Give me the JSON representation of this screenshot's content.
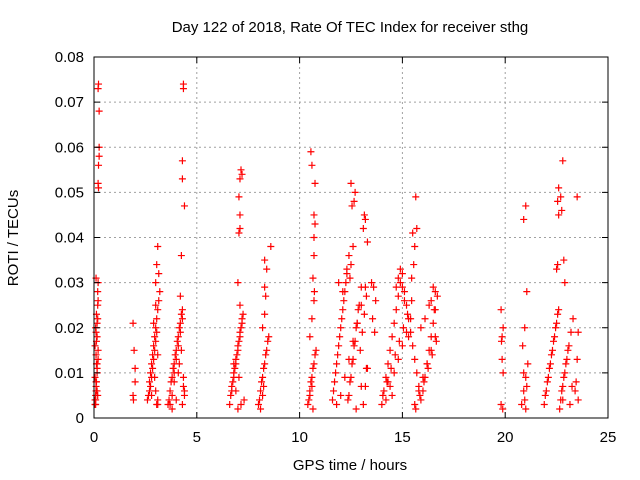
{
  "chart_data": {
    "type": "scatter",
    "title": "Day 122 of 2018, Rate Of TEC Index for receiver sthg",
    "xlabel": "GPS time / hours",
    "ylabel": "ROTI / TECUs",
    "xlim": [
      0,
      25
    ],
    "ylim": [
      0,
      0.08
    ],
    "xticks": [
      0,
      5,
      10,
      15,
      20,
      25
    ],
    "yticks": [
      0,
      0.01,
      0.02,
      0.03,
      0.04,
      0.05,
      0.06,
      0.07,
      0.08
    ],
    "xtick_labels": [
      "0",
      "5",
      "10",
      "15",
      "20",
      "25"
    ],
    "ytick_labels": [
      "0",
      "0.01",
      "0.02",
      "0.03",
      "0.04",
      "0.05",
      "0.06",
      "0.07",
      "0.08"
    ],
    "grid": true,
    "marker": "+",
    "series": [
      {
        "name": "ROTI",
        "color": "#ff0000",
        "x": [
          0.05,
          0.08,
          0.1,
          0.12,
          0.15,
          0.18,
          0.2,
          0.05,
          0.1,
          0.15,
          0.2,
          0.08,
          0.12,
          0.18,
          0.1,
          0.15,
          0.05,
          0.2,
          0.12,
          0.08,
          0.15,
          0.1,
          0.18,
          0.2,
          0.22,
          0.22,
          0.2,
          0.25,
          0.25,
          0.25,
          0.22,
          0.2,
          0.18,
          0.15,
          0.1,
          0.12,
          0.08,
          0.05,
          0.15,
          0.1,
          1.9,
          1.95,
          2.0,
          1.9,
          2.0,
          1.92,
          2.6,
          2.7,
          2.8,
          2.9,
          3.0,
          3.1,
          3.2,
          2.65,
          2.75,
          2.85,
          2.95,
          3.05,
          3.15,
          2.7,
          2.8,
          2.9,
          3.0,
          3.1,
          2.75,
          2.85,
          2.95,
          3.05,
          3.0,
          3.1,
          3.05,
          3.15,
          3.0,
          2.9,
          2.8,
          3.1,
          3.0,
          2.95,
          3.05,
          3.1,
          3.6,
          3.7,
          3.8,
          3.9,
          4.0,
          4.1,
          4.2,
          4.3,
          4.4,
          3.65,
          3.75,
          3.85,
          3.95,
          4.05,
          4.15,
          4.25,
          4.35,
          3.7,
          3.8,
          3.9,
          4.0,
          4.1,
          4.2,
          4.3,
          4.4,
          4.25,
          4.3,
          4.3,
          4.35,
          4.35,
          4.4,
          4.2,
          4.1,
          3.9,
          4.0,
          4.15,
          4.3,
          4.25,
          4.35,
          3.8,
          6.6,
          6.7,
          6.8,
          6.9,
          7.0,
          7.1,
          7.2,
          7.3,
          6.65,
          6.75,
          6.85,
          6.95,
          7.05,
          7.15,
          7.25,
          6.7,
          6.8,
          6.9,
          7.0,
          7.1,
          7.2,
          7.0,
          7.05,
          7.1,
          7.1,
          7.05,
          7.1,
          7.15,
          7.2,
          7.1,
          7.0,
          6.9,
          7.05,
          7.15,
          6.8,
          8.0,
          8.1,
          8.2,
          8.3,
          8.4,
          8.5,
          8.05,
          8.15,
          8.25,
          8.35,
          8.45,
          8.2,
          8.3,
          8.35,
          8.3,
          8.6,
          8.3,
          8.4,
          8.2,
          8.25,
          8.1,
          10.4,
          10.5,
          10.6,
          10.7,
          10.8,
          10.45,
          10.55,
          10.65,
          10.75,
          10.5,
          10.6,
          10.7,
          10.65,
          10.7,
          10.7,
          10.75,
          10.75,
          10.6,
          10.55,
          10.7,
          10.65,
          10.5,
          10.6,
          10.72,
          11.6,
          11.7,
          11.8,
          11.9,
          12.0,
          12.1,
          12.2,
          12.3,
          12.4,
          12.5,
          12.6,
          12.7,
          12.8,
          12.9,
          13.0,
          13.1,
          13.2,
          13.3,
          11.65,
          11.75,
          11.85,
          11.95,
          12.05,
          12.15,
          12.25,
          12.35,
          12.45,
          12.55,
          12.65,
          12.75,
          12.85,
          12.95,
          13.05,
          13.15,
          13.25,
          11.8,
          12.0,
          12.2,
          12.4,
          12.6,
          12.8,
          13.0,
          13.2,
          12.5,
          12.6,
          12.55,
          12.65,
          12.5,
          12.7,
          13.1,
          13.15,
          13.2,
          13.3,
          12.3,
          12.4,
          11.9,
          12.1,
          13.0,
          13.25,
          13.5,
          13.6,
          13.7,
          13.55,
          13.65,
          12.45,
          12.75,
          14.0,
          14.1,
          14.2,
          14.3,
          14.4,
          14.5,
          14.6,
          14.7,
          14.8,
          14.9,
          15.0,
          15.1,
          15.2,
          15.3,
          15.4,
          15.5,
          15.6,
          15.7,
          15.8,
          15.9,
          16.0,
          16.1,
          16.2,
          16.3,
          16.4,
          16.5,
          16.6,
          16.7,
          14.05,
          14.25,
          14.45,
          14.65,
          14.85,
          15.05,
          15.25,
          15.45,
          15.65,
          15.85,
          16.05,
          16.25,
          16.45,
          16.65,
          14.2,
          14.4,
          14.6,
          14.8,
          15.0,
          15.2,
          15.4,
          15.6,
          15.8,
          16.0,
          16.2,
          16.4,
          16.6,
          15.65,
          15.7,
          15.6,
          15.5,
          15.55,
          15.45,
          14.9,
          14.8,
          15.0,
          15.1,
          14.7,
          16.5,
          16.6,
          16.4,
          16.3,
          16.55,
          15.9,
          16.1,
          15.3,
          14.5,
          14.3,
          19.8,
          19.85,
          19.9,
          19.8,
          19.85,
          19.9,
          19.82,
          19.88,
          20.8,
          20.9,
          21.0,
          21.1,
          20.85,
          20.95,
          21.05,
          20.9,
          21.0,
          20.95,
          21.05,
          20.9,
          21.0,
          21.9,
          22.0,
          22.1,
          22.2,
          22.3,
          22.4,
          22.5,
          22.6,
          22.7,
          22.8,
          22.9,
          23.0,
          23.1,
          23.2,
          23.3,
          21.95,
          22.05,
          22.15,
          22.25,
          22.35,
          22.45,
          22.55,
          22.65,
          22.75,
          22.85,
          22.95,
          23.05,
          23.15,
          23.25,
          22.5,
          22.55,
          22.6,
          22.55,
          22.6,
          22.7,
          22.75,
          22.8,
          22.85,
          22.9,
          22.8,
          23.5,
          23.55,
          23.5,
          23.4,
          23.55,
          23.45
        ],
        "y": [
          0.003,
          0.005,
          0.008,
          0.012,
          0.018,
          0.022,
          0.026,
          0.004,
          0.007,
          0.01,
          0.015,
          0.02,
          0.023,
          0.028,
          0.031,
          0.006,
          0.009,
          0.013,
          0.017,
          0.003,
          0.011,
          0.019,
          0.005,
          0.052,
          0.051,
          0.074,
          0.073,
          0.068,
          0.06,
          0.058,
          0.056,
          0.03,
          0.025,
          0.021,
          0.014,
          0.008,
          0.004,
          0.016,
          0.012,
          0.006,
          0.021,
          0.015,
          0.011,
          0.005,
          0.008,
          0.004,
          0.004,
          0.008,
          0.012,
          0.016,
          0.02,
          0.024,
          0.028,
          0.005,
          0.01,
          0.014,
          0.018,
          0.022,
          0.026,
          0.006,
          0.009,
          0.013,
          0.017,
          0.003,
          0.007,
          0.011,
          0.015,
          0.019,
          0.03,
          0.038,
          0.034,
          0.032,
          0.025,
          0.021,
          0.005,
          0.004,
          0.006,
          0.009,
          0.003,
          0.014,
          0.003,
          0.006,
          0.009,
          0.012,
          0.015,
          0.018,
          0.021,
          0.024,
          0.005,
          0.004,
          0.008,
          0.011,
          0.014,
          0.017,
          0.02,
          0.023,
          0.007,
          0.003,
          0.005,
          0.01,
          0.013,
          0.016,
          0.019,
          0.022,
          0.006,
          0.036,
          0.053,
          0.057,
          0.073,
          0.074,
          0.047,
          0.027,
          0.01,
          0.008,
          0.004,
          0.012,
          0.003,
          0.015,
          0.009,
          0.002,
          0.003,
          0.006,
          0.009,
          0.012,
          0.015,
          0.018,
          0.021,
          0.004,
          0.005,
          0.008,
          0.011,
          0.014,
          0.017,
          0.02,
          0.023,
          0.007,
          0.01,
          0.013,
          0.016,
          0.019,
          0.022,
          0.03,
          0.041,
          0.042,
          0.045,
          0.049,
          0.053,
          0.055,
          0.054,
          0.025,
          0.002,
          0.006,
          0.009,
          0.003,
          0.012,
          0.003,
          0.006,
          0.009,
          0.012,
          0.015,
          0.018,
          0.004,
          0.008,
          0.011,
          0.014,
          0.017,
          0.02,
          0.023,
          0.027,
          0.029,
          0.038,
          0.035,
          0.033,
          0.005,
          0.007,
          0.002,
          0.003,
          0.006,
          0.009,
          0.012,
          0.015,
          0.004,
          0.008,
          0.011,
          0.014,
          0.018,
          0.022,
          0.026,
          0.031,
          0.036,
          0.04,
          0.043,
          0.052,
          0.056,
          0.059,
          0.045,
          0.002,
          0.005,
          0.007,
          0.028,
          0.004,
          0.008,
          0.012,
          0.016,
          0.02,
          0.024,
          0.028,
          0.032,
          0.005,
          0.009,
          0.013,
          0.017,
          0.021,
          0.025,
          0.029,
          0.003,
          0.007,
          0.011,
          0.006,
          0.01,
          0.014,
          0.018,
          0.022,
          0.026,
          0.03,
          0.004,
          0.008,
          0.012,
          0.016,
          0.02,
          0.024,
          0.015,
          0.019,
          0.023,
          0.027,
          0.003,
          0.005,
          0.009,
          0.013,
          0.017,
          0.021,
          0.025,
          0.029,
          0.034,
          0.038,
          0.047,
          0.048,
          0.052,
          0.05,
          0.042,
          0.045,
          0.044,
          0.039,
          0.033,
          0.036,
          0.03,
          0.028,
          0.007,
          0.011,
          0.03,
          0.029,
          0.026,
          0.022,
          0.019,
          0.031,
          0.002,
          0.003,
          0.006,
          0.009,
          0.012,
          0.015,
          0.018,
          0.021,
          0.024,
          0.027,
          0.03,
          0.032,
          0.028,
          0.025,
          0.022,
          0.019,
          0.016,
          0.013,
          0.01,
          0.007,
          0.004,
          0.006,
          0.009,
          0.012,
          0.015,
          0.018,
          0.021,
          0.024,
          0.027,
          0.005,
          0.008,
          0.011,
          0.014,
          0.017,
          0.02,
          0.023,
          0.026,
          0.002,
          0.005,
          0.008,
          0.011,
          0.014,
          0.017,
          0.004,
          0.007,
          0.01,
          0.013,
          0.016,
          0.019,
          0.022,
          0.003,
          0.006,
          0.009,
          0.012,
          0.015,
          0.018,
          0.049,
          0.042,
          0.038,
          0.041,
          0.034,
          0.031,
          0.033,
          0.031,
          0.029,
          0.026,
          0.029,
          0.029,
          0.028,
          0.026,
          0.025,
          0.024,
          0.02,
          0.022,
          0.018,
          0.005,
          0.008,
          0.003,
          0.013,
          0.02,
          0.024,
          0.018,
          0.01,
          0.017,
          0.002,
          0.003,
          0.006,
          0.009,
          0.012,
          0.016,
          0.02,
          0.028,
          0.044,
          0.047,
          0.004,
          0.007,
          0.01,
          0.002,
          0.003,
          0.006,
          0.009,
          0.012,
          0.015,
          0.018,
          0.021,
          0.024,
          0.004,
          0.007,
          0.01,
          0.013,
          0.016,
          0.019,
          0.022,
          0.005,
          0.008,
          0.011,
          0.014,
          0.017,
          0.02,
          0.023,
          0.002,
          0.006,
          0.009,
          0.012,
          0.015,
          0.003,
          0.007,
          0.033,
          0.034,
          0.045,
          0.048,
          0.051,
          0.049,
          0.046,
          0.057,
          0.035,
          0.03,
          0.004,
          0.049,
          0.019,
          0.013,
          0.006,
          0.004,
          0.008
        ]
      }
    ]
  }
}
